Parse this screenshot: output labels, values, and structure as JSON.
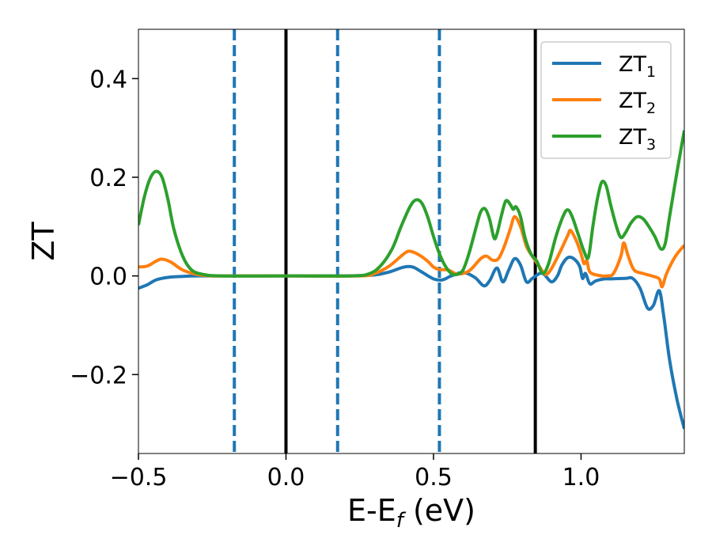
{
  "chart_data": {
    "type": "line",
    "xlabel": {
      "main": "E-E",
      "sub": "f",
      "suffix": " (eV)"
    },
    "ylabel": "ZT",
    "xlim": [
      -0.5,
      1.35
    ],
    "ylim": [
      -0.36,
      0.5
    ],
    "xticks": [
      {
        "value": -0.5,
        "label": "−0.5"
      },
      {
        "value": 0.0,
        "label": "0.0"
      },
      {
        "value": 0.5,
        "label": "0.5"
      },
      {
        "value": 1.0,
        "label": "1.0"
      }
    ],
    "yticks": [
      {
        "value": -0.2,
        "label": "−0.2"
      },
      {
        "value": 0.0,
        "label": "0.0"
      },
      {
        "value": 0.2,
        "label": "0.2"
      },
      {
        "value": 0.4,
        "label": "0.4"
      }
    ],
    "grid": false,
    "legend_position": "top-right",
    "vlines_solid": [
      0.0,
      0.845
    ],
    "vlines_dashed": [
      -0.175,
      0.175,
      0.52
    ],
    "vline_solid_color": "#000000",
    "vline_dashed_color": "#1f77b4",
    "series": [
      {
        "name": "ZT",
        "sub": "1",
        "color": "#1f77b4",
        "points": [
          [
            -0.5,
            -0.025
          ],
          [
            -0.47,
            -0.018
          ],
          [
            -0.44,
            -0.008
          ],
          [
            -0.4,
            -0.003
          ],
          [
            -0.35,
            -0.001
          ],
          [
            -0.3,
            0.0
          ],
          [
            -0.2,
            0.0
          ],
          [
            0.0,
            0.0
          ],
          [
            0.2,
            0.0
          ],
          [
            0.3,
            0.002
          ],
          [
            0.35,
            0.008
          ],
          [
            0.4,
            0.018
          ],
          [
            0.43,
            0.018
          ],
          [
            0.46,
            0.008
          ],
          [
            0.5,
            -0.006
          ],
          [
            0.53,
            -0.008
          ],
          [
            0.56,
            0.0
          ],
          [
            0.6,
            0.007
          ],
          [
            0.64,
            -0.003
          ],
          [
            0.67,
            -0.02
          ],
          [
            0.69,
            -0.01
          ],
          [
            0.715,
            0.016
          ],
          [
            0.735,
            -0.012
          ],
          [
            0.755,
            0.012
          ],
          [
            0.775,
            0.035
          ],
          [
            0.795,
            0.022
          ],
          [
            0.815,
            -0.012
          ],
          [
            0.835,
            -0.005
          ],
          [
            0.86,
            0.005
          ],
          [
            0.875,
            0.003
          ],
          [
            0.9,
            -0.012
          ],
          [
            0.92,
            0.0
          ],
          [
            0.935,
            0.022
          ],
          [
            0.955,
            0.037
          ],
          [
            0.975,
            0.035
          ],
          [
            0.995,
            0.02
          ],
          [
            1.005,
            -0.005
          ],
          [
            1.015,
            0.005
          ],
          [
            1.03,
            -0.016
          ],
          [
            1.05,
            -0.01
          ],
          [
            1.08,
            -0.006
          ],
          [
            1.1,
            -0.006
          ],
          [
            1.15,
            -0.005
          ],
          [
            1.175,
            -0.005
          ],
          [
            1.2,
            -0.025
          ],
          [
            1.225,
            -0.065
          ],
          [
            1.245,
            -0.06
          ],
          [
            1.265,
            -0.03
          ],
          [
            1.28,
            -0.08
          ],
          [
            1.3,
            -0.17
          ],
          [
            1.325,
            -0.25
          ],
          [
            1.35,
            -0.31
          ]
        ]
      },
      {
        "name": "ZT",
        "sub": "2",
        "color": "#ff7f0e",
        "points": [
          [
            -0.5,
            0.018
          ],
          [
            -0.47,
            0.02
          ],
          [
            -0.44,
            0.03
          ],
          [
            -0.42,
            0.034
          ],
          [
            -0.39,
            0.028
          ],
          [
            -0.35,
            0.012
          ],
          [
            -0.3,
            0.003
          ],
          [
            -0.25,
            0.0
          ],
          [
            -0.2,
            0.0
          ],
          [
            0.0,
            0.0
          ],
          [
            0.25,
            0.0
          ],
          [
            0.3,
            0.005
          ],
          [
            0.35,
            0.02
          ],
          [
            0.4,
            0.045
          ],
          [
            0.42,
            0.05
          ],
          [
            0.45,
            0.043
          ],
          [
            0.48,
            0.03
          ],
          [
            0.5,
            0.018
          ],
          [
            0.52,
            0.013
          ],
          [
            0.55,
            0.012
          ],
          [
            0.58,
            0.004
          ],
          [
            0.62,
            0.01
          ],
          [
            0.66,
            0.035
          ],
          [
            0.68,
            0.04
          ],
          [
            0.7,
            0.032
          ],
          [
            0.72,
            0.035
          ],
          [
            0.74,
            0.06
          ],
          [
            0.76,
            0.095
          ],
          [
            0.775,
            0.12
          ],
          [
            0.795,
            0.1
          ],
          [
            0.815,
            0.06
          ],
          [
            0.835,
            0.04
          ],
          [
            0.86,
            0.018
          ],
          [
            0.88,
            0.003
          ],
          [
            0.9,
            0.015
          ],
          [
            0.93,
            0.05
          ],
          [
            0.955,
            0.082
          ],
          [
            0.965,
            0.092
          ],
          [
            0.985,
            0.07
          ],
          [
            1.0,
            0.045
          ],
          [
            1.01,
            0.025
          ],
          [
            1.02,
            0.03
          ],
          [
            1.03,
            0.008
          ],
          [
            1.06,
            0.001
          ],
          [
            1.09,
            0.0
          ],
          [
            1.11,
            0.005
          ],
          [
            1.135,
            0.04
          ],
          [
            1.145,
            0.067
          ],
          [
            1.16,
            0.04
          ],
          [
            1.18,
            0.012
          ],
          [
            1.21,
            0.005
          ],
          [
            1.24,
            0.0
          ],
          [
            1.265,
            -0.006
          ],
          [
            1.275,
            -0.022
          ],
          [
            1.29,
            0.005
          ],
          [
            1.32,
            0.04
          ],
          [
            1.35,
            0.062
          ]
        ]
      },
      {
        "name": "ZT",
        "sub": "3",
        "color": "#2ca02c",
        "points": [
          [
            -0.5,
            0.103
          ],
          [
            -0.48,
            0.16
          ],
          [
            -0.46,
            0.198
          ],
          [
            -0.44,
            0.212
          ],
          [
            -0.42,
            0.2
          ],
          [
            -0.4,
            0.155
          ],
          [
            -0.38,
            0.095
          ],
          [
            -0.35,
            0.04
          ],
          [
            -0.32,
            0.012
          ],
          [
            -0.28,
            0.003
          ],
          [
            -0.22,
            0.0
          ],
          [
            0.0,
            0.0
          ],
          [
            0.22,
            0.0
          ],
          [
            0.28,
            0.004
          ],
          [
            0.32,
            0.02
          ],
          [
            0.36,
            0.055
          ],
          [
            0.39,
            0.1
          ],
          [
            0.42,
            0.14
          ],
          [
            0.44,
            0.154
          ],
          [
            0.46,
            0.148
          ],
          [
            0.48,
            0.12
          ],
          [
            0.5,
            0.08
          ],
          [
            0.52,
            0.045
          ],
          [
            0.54,
            0.02
          ],
          [
            0.56,
            0.005
          ],
          [
            0.58,
            0.003
          ],
          [
            0.6,
            0.012
          ],
          [
            0.62,
            0.045
          ],
          [
            0.645,
            0.1
          ],
          [
            0.66,
            0.13
          ],
          [
            0.675,
            0.136
          ],
          [
            0.69,
            0.115
          ],
          [
            0.705,
            0.077
          ],
          [
            0.715,
            0.085
          ],
          [
            0.73,
            0.122
          ],
          [
            0.745,
            0.152
          ],
          [
            0.76,
            0.145
          ],
          [
            0.77,
            0.135
          ],
          [
            0.78,
            0.14
          ],
          [
            0.795,
            0.12
          ],
          [
            0.81,
            0.078
          ],
          [
            0.83,
            0.045
          ],
          [
            0.85,
            0.03
          ],
          [
            0.87,
            0.005
          ],
          [
            0.89,
            0.025
          ],
          [
            0.915,
            0.08
          ],
          [
            0.94,
            0.122
          ],
          [
            0.955,
            0.134
          ],
          [
            0.97,
            0.12
          ],
          [
            0.99,
            0.085
          ],
          [
            1.01,
            0.05
          ],
          [
            1.025,
            0.038
          ],
          [
            1.04,
            0.1
          ],
          [
            1.055,
            0.155
          ],
          [
            1.07,
            0.19
          ],
          [
            1.085,
            0.183
          ],
          [
            1.1,
            0.145
          ],
          [
            1.12,
            0.1
          ],
          [
            1.135,
            0.078
          ],
          [
            1.15,
            0.087
          ],
          [
            1.17,
            0.108
          ],
          [
            1.19,
            0.12
          ],
          [
            1.21,
            0.116
          ],
          [
            1.23,
            0.1
          ],
          [
            1.25,
            0.08
          ],
          [
            1.27,
            0.055
          ],
          [
            1.285,
            0.065
          ],
          [
            1.3,
            0.12
          ],
          [
            1.325,
            0.21
          ],
          [
            1.35,
            0.295
          ]
        ]
      }
    ]
  }
}
